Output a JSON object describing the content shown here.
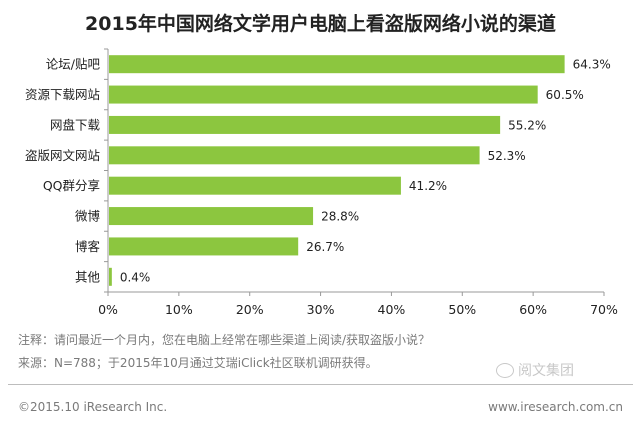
{
  "chart_data": {
    "type": "bar",
    "orientation": "horizontal",
    "title": "2015年中国网络文学用户电脑上看盗版网络小说的渠道",
    "categories": [
      "论坛/贴吧",
      "资源下载网站",
      "网盘下载",
      "盗版网文网站",
      "QQ群分享",
      "微博",
      "博客",
      "其他"
    ],
    "values": [
      64.3,
      60.5,
      55.2,
      52.3,
      41.2,
      28.8,
      26.7,
      0.4
    ],
    "value_labels": [
      "64.3%",
      "60.5%",
      "55.2%",
      "52.3%",
      "41.2%",
      "28.8%",
      "26.7%",
      "0.4%"
    ],
    "xlim": [
      0,
      70
    ],
    "ticks": [
      "0%",
      "10%",
      "20%",
      "30%",
      "40%",
      "50%",
      "60%",
      "70%"
    ],
    "bar_color": "#8cc63f",
    "grid": false,
    "legend": "none"
  },
  "notes": {
    "note": "注释：请问最近一个月内，您在电脑上经常在哪些渠道上阅读/获取盗版小说？",
    "source": "来源：N=788；于2015年10月通过艾瑞iClick社区联机调研获得。"
  },
  "footer": {
    "copyright": "©2015.10 iResearch Inc.",
    "website": "www.iresearch.com.cn",
    "watermark": "阅文集团"
  }
}
